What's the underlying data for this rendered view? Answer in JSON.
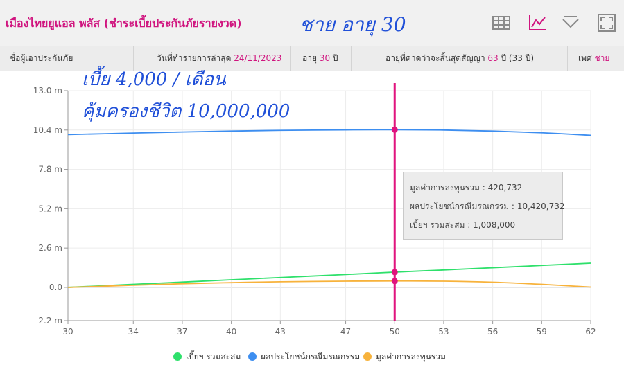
{
  "app": {
    "title": "เมืองไทยยูแอล พลัส (ชำระเบี้ยประกันภัยรายงวด)"
  },
  "handwritten": {
    "top": "ชาย อายุ 30",
    "line1": "เบี้ย 4,000 / เดือน",
    "line2": "คุ้มครองชีวิต 10,000,000"
  },
  "toolbar": {
    "icons": [
      "table-icon",
      "line-chart-icon",
      "filter-icon",
      "fullscreen-icon"
    ]
  },
  "info": {
    "insured_label": "ชื่อผู้เอาประกันภัย",
    "date_label": "วันที่ทำรายการล่าสุด",
    "date_value": "24/11/2023",
    "age_label": "อายุ",
    "age_value": "30",
    "age_unit": "ปี",
    "end_age_label": "อายุที่คาดว่าจะสิ้นสุดสัญญา",
    "end_age_value": "63",
    "end_age_unit": "ปี (33 ปี)",
    "sex_label": "เพศ",
    "sex_value": "ชาย"
  },
  "tooltip": {
    "line1_label": "มูลค่าการลงทุนรวม :",
    "line1_value": "420,732",
    "line2_label": "ผลประโยชน์กรณีมรณกรรม :",
    "line2_value": "10,420,732",
    "line3_label": "เบี้ยฯ รวมสะสม :",
    "line3_value": "1,008,000"
  },
  "colors": {
    "brand": "#d0157f",
    "series_green": "#2ee06b",
    "series_blue": "#3d8ef0",
    "series_orange": "#f7b23b",
    "crosshair": "#e0147e"
  },
  "chart_data": {
    "type": "line",
    "title": "",
    "xlabel": "",
    "ylabel": "",
    "xlim": [
      30,
      62
    ],
    "ylim": [
      -2.2,
      13.0
    ],
    "x_ticks": [
      "30",
      "34",
      "37",
      "40",
      "43",
      "47",
      "50",
      "53",
      "56",
      "59",
      "62"
    ],
    "y_ticks": [
      "13.0 m",
      "10.4 m",
      "7.8 m",
      "5.2 m",
      "2.6 m",
      "0.0",
      "-2.2 m"
    ],
    "grid": true,
    "legend_position": "bottom",
    "crosshair_x": 50,
    "x": [
      30,
      34,
      37,
      40,
      43,
      47,
      50,
      53,
      56,
      59,
      62
    ],
    "series": [
      {
        "name": "เบี้ยฯ รวมสะสม",
        "color": "#2ee06b",
        "values": [
          0.0,
          0.2,
          0.35,
          0.5,
          0.65,
          0.85,
          1.008,
          1.15,
          1.3,
          1.45,
          1.6
        ]
      },
      {
        "name": "ผลประโยชน์กรณีมรณกรรม",
        "color": "#3d8ef0",
        "values": [
          10.1,
          10.2,
          10.27,
          10.33,
          10.38,
          10.41,
          10.42,
          10.4,
          10.33,
          10.22,
          10.05
        ]
      },
      {
        "name": "มูลค่าการลงทุนรวม",
        "color": "#f7b23b",
        "values": [
          0.0,
          0.14,
          0.24,
          0.31,
          0.37,
          0.41,
          0.42,
          0.41,
          0.34,
          0.2,
          0.02
        ]
      }
    ]
  }
}
